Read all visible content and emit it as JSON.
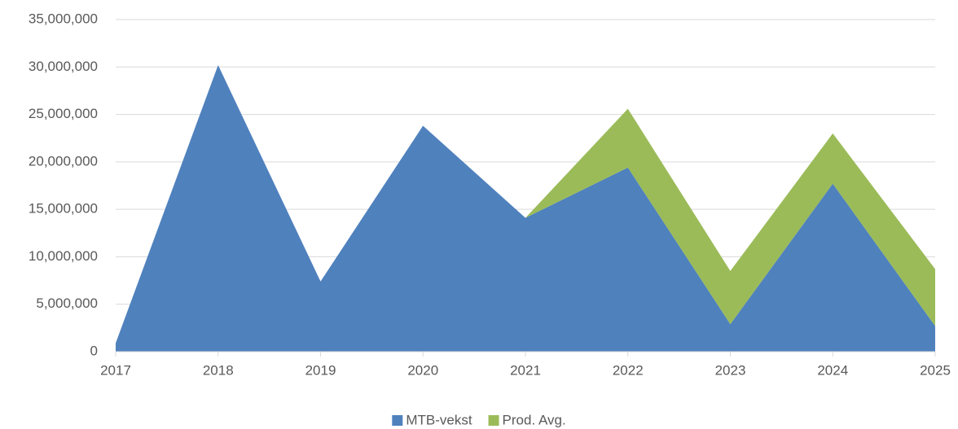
{
  "chart_data": {
    "type": "stacked_area",
    "categories": [
      "2017",
      "2018",
      "2019",
      "2020",
      "2021",
      "2022",
      "2023",
      "2024",
      "2025"
    ],
    "series": [
      {
        "name": "MTB-vekst",
        "color": "#4f81bd",
        "values": [
          900000,
          30200000,
          7400000,
          23800000,
          14100000,
          19400000,
          2900000,
          17700000,
          2700000
        ]
      },
      {
        "name": "Prod. Avg.",
        "color": "#9bbb59",
        "values": [
          0,
          0,
          0,
          0,
          0,
          6200000,
          5600000,
          5300000,
          6000000
        ]
      }
    ],
    "ylim": [
      0,
      35000000
    ],
    "yticks": [
      0,
      {
        "value": 5000000,
        "label": "5,000,000"
      },
      {
        "value": 10000000,
        "label": "10,000,000"
      },
      {
        "value": 15000000,
        "label": "15,000,000"
      },
      {
        "value": 20000000,
        "label": "20,000,000"
      },
      {
        "value": 25000000,
        "label": "25,000,000"
      },
      {
        "value": 30000000,
        "label": "30,000,000"
      },
      {
        "value": 35000000,
        "label": "35,000,000"
      }
    ],
    "grid": true,
    "legend": "bottom"
  }
}
